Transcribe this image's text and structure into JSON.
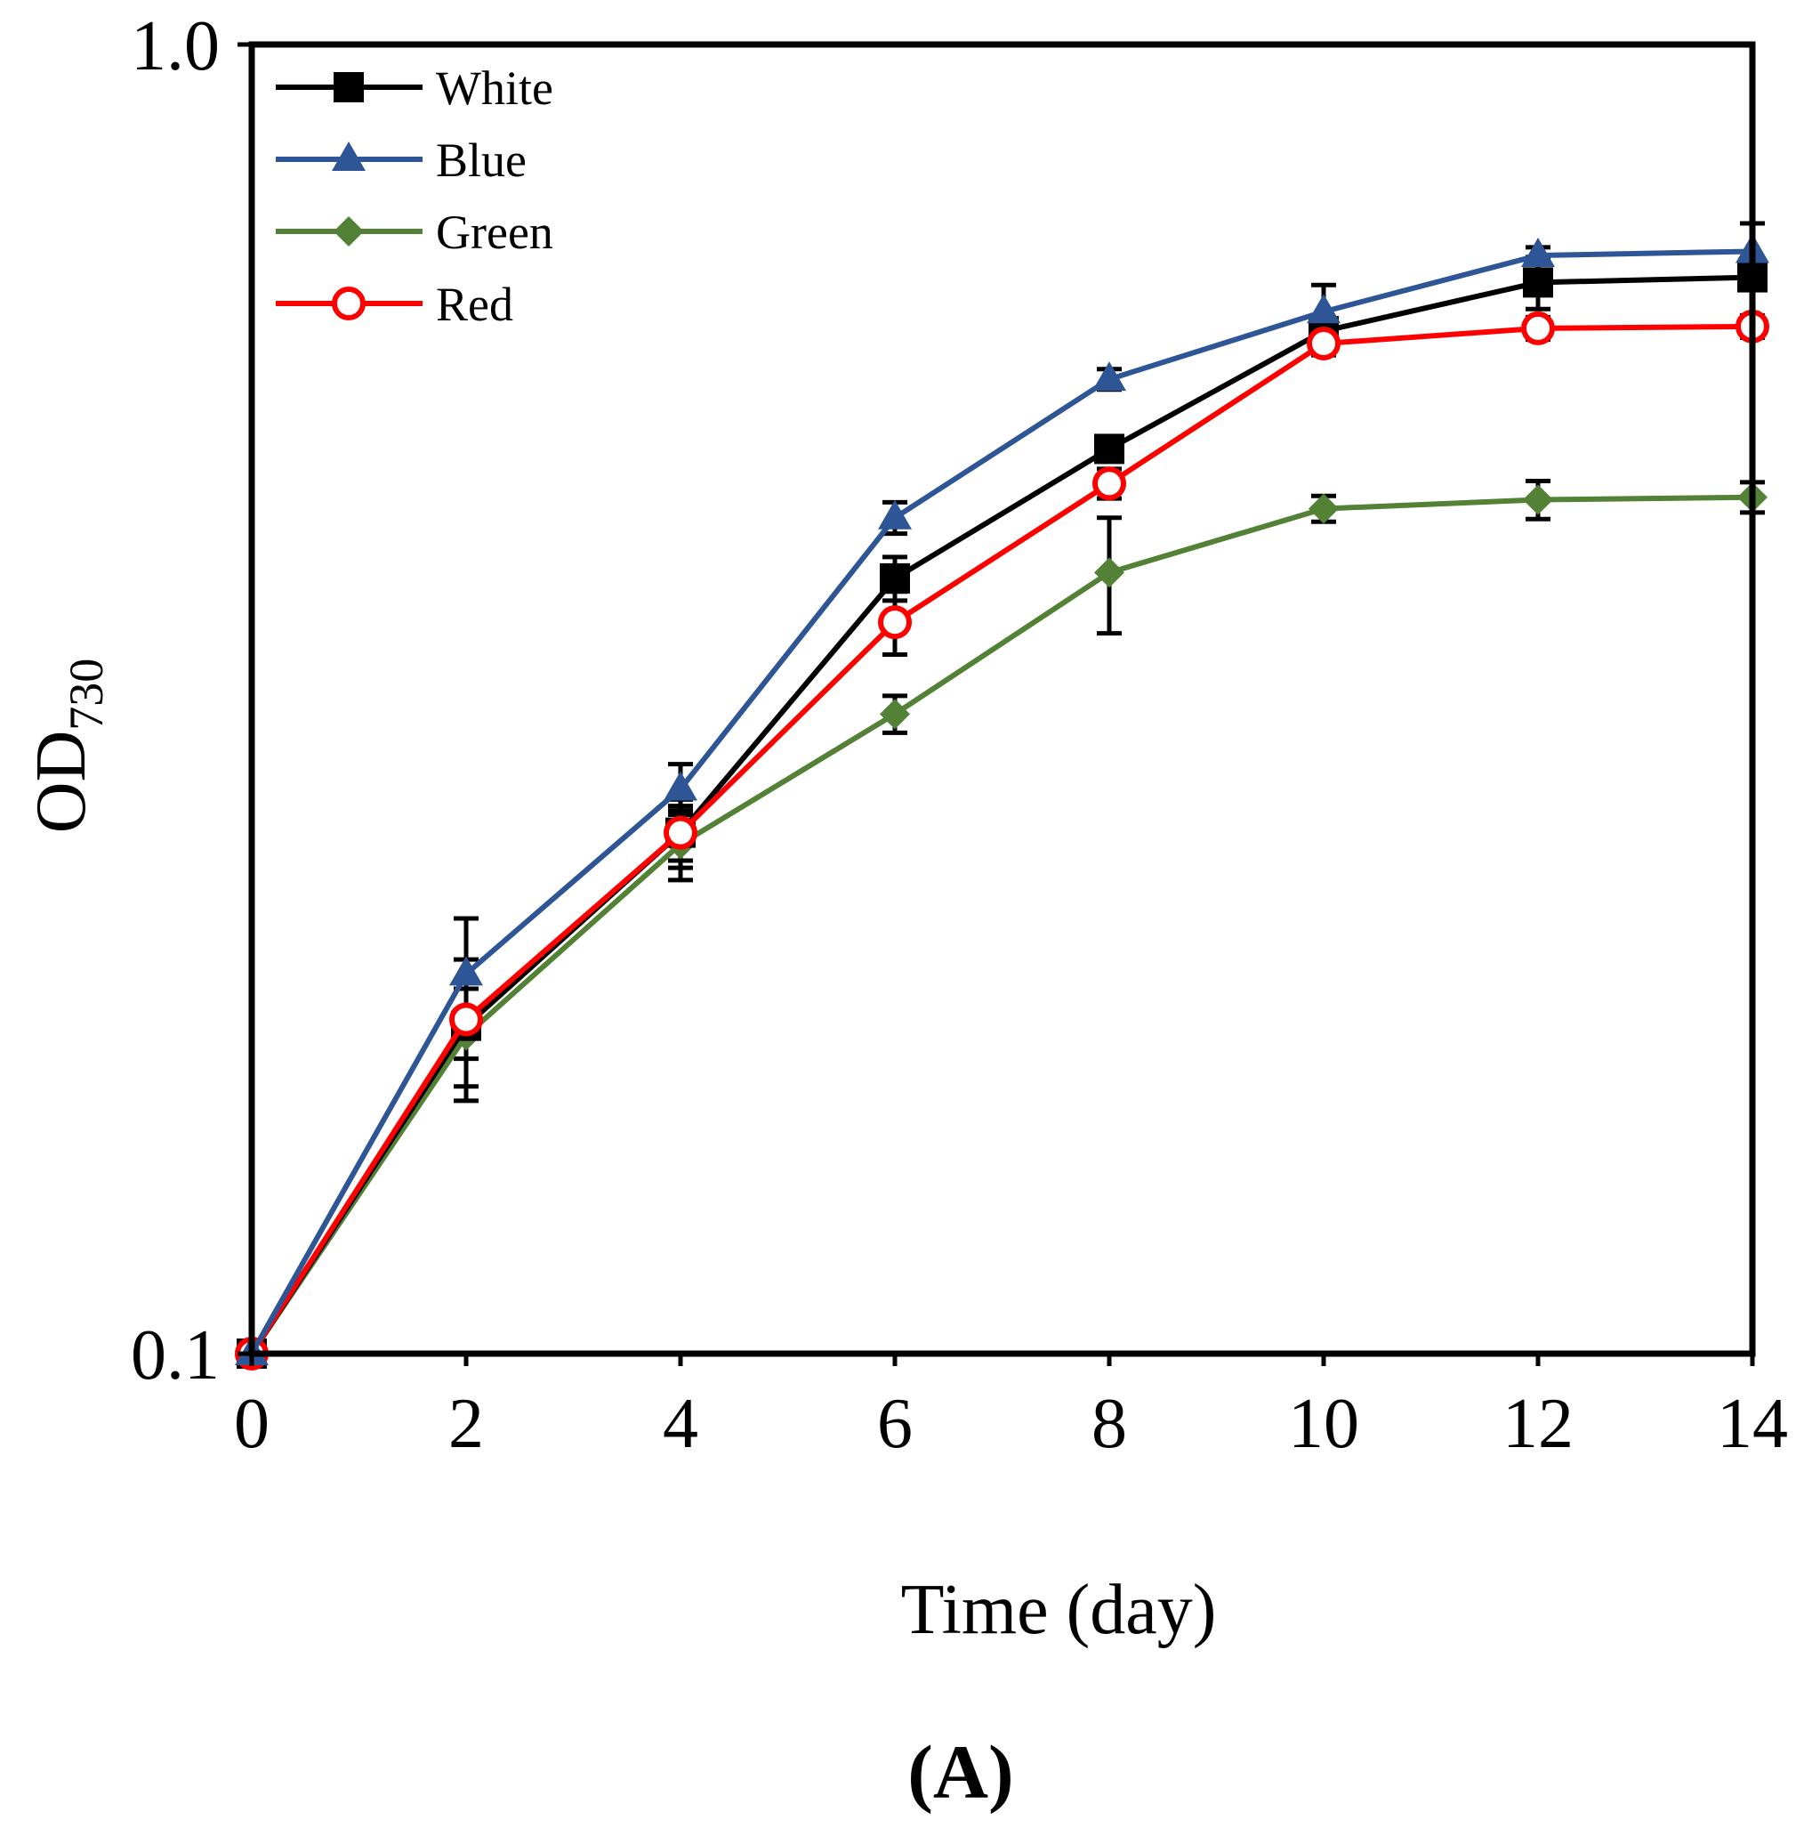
{
  "chart_data": {
    "type": "line",
    "yscale": "log",
    "x": [
      0,
      2,
      4,
      6,
      8,
      10,
      12,
      14
    ],
    "xlim": [
      0,
      14
    ],
    "ylim": [
      0.1,
      1.0
    ],
    "xticks": [
      0,
      2,
      4,
      6,
      8,
      10,
      12,
      14
    ],
    "yticks": [
      0.1,
      1.0
    ],
    "ytick_labels": [
      "0.1",
      "1.0"
    ],
    "xlabel": "Time (day)",
    "ylabel_main": "OD",
    "ylabel_sub": "730",
    "panel_label": "(A)",
    "legend_position": "top-left",
    "series": [
      {
        "name": "White",
        "color": "#000000",
        "marker": "square",
        "values": [
          0.1,
          0.178,
          0.25,
          0.391,
          0.491,
          0.604,
          0.658,
          0.664
        ],
        "errors": [
          0.0,
          0.022,
          0.015,
          0.015,
          0.01,
          0.01,
          0.03,
          0.01
        ]
      },
      {
        "name": "Blue",
        "color": "#2E5596",
        "marker": "triangle",
        "values": [
          0.1,
          0.195,
          0.27,
          0.435,
          0.555,
          0.625,
          0.69,
          0.695
        ],
        "errors": [
          0.0,
          0.02,
          0.012,
          0.012,
          0.01,
          0.03,
          0.01,
          0.035
        ]
      },
      {
        "name": "Green",
        "color": "#538135",
        "marker": "diamond",
        "values": [
          0.1,
          0.175,
          0.245,
          0.308,
          0.395,
          0.442,
          0.449,
          0.451
        ],
        "errors": [
          0.0,
          0.015,
          0.015,
          0.01,
          0.04,
          0.01,
          0.015,
          0.012
        ]
      },
      {
        "name": "Red",
        "color": "#FF0000",
        "marker": "circle",
        "values": [
          0.1,
          0.18,
          0.25,
          0.362,
          0.462,
          0.591,
          0.607,
          0.609
        ],
        "errors": [
          0.0,
          0.012,
          0.012,
          0.02,
          0.012,
          0.012,
          0.012,
          0.012
        ]
      }
    ]
  }
}
